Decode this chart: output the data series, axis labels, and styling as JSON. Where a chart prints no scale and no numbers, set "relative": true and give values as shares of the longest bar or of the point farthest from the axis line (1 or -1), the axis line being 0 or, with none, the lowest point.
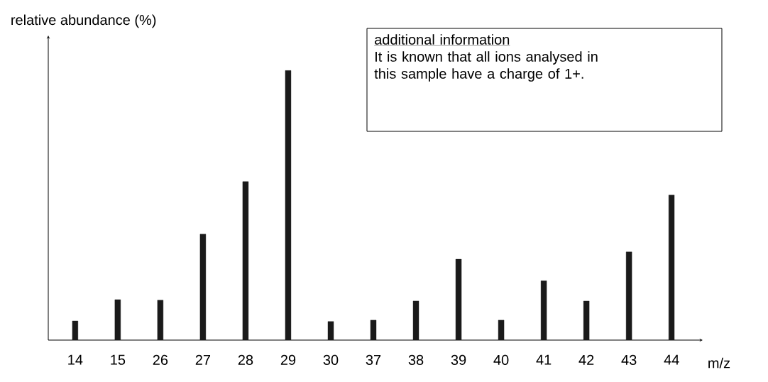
{
  "chart_data": {
    "type": "bar",
    "relative": true,
    "xlabel": "m/z",
    "ylabel": "relative abundance (%)",
    "categories": [
      "14",
      "15",
      "26",
      "27",
      "28",
      "29",
      "30",
      "37",
      "38",
      "39",
      "40",
      "41",
      "42",
      "43",
      "44"
    ],
    "values": [
      0.071,
      0.15,
      0.148,
      0.393,
      0.588,
      1,
      0.069,
      0.074,
      0.145,
      0.3,
      0.074,
      0.22,
      0.145,
      0.327,
      0.538
    ],
    "color": "#1a1a1a",
    "annotations": [
      "additional information",
      "It is known that all ions analysed in this sample have a charge of 1+."
    ]
  }
}
